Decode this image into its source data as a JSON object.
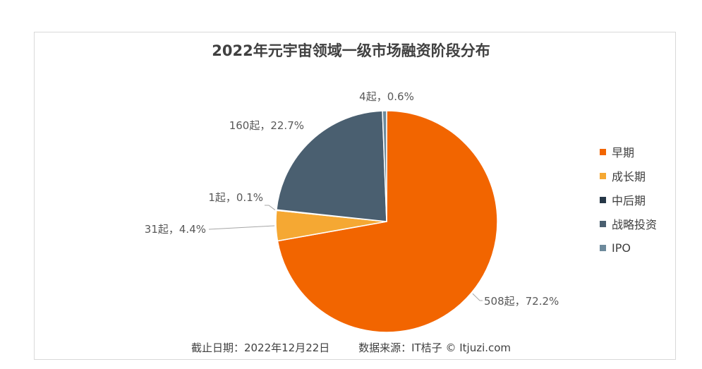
{
  "chart_data": {
    "type": "pie",
    "title": "2022年元宇宙领域一级市场融资阶段分布",
    "categories": [
      "早期",
      "成长期",
      "中后期",
      "战略投资",
      "IPO"
    ],
    "counts": [
      508,
      31,
      1,
      160,
      4
    ],
    "values": [
      72.2,
      4.4,
      0.1,
      22.7,
      0.6
    ],
    "data_labels": [
      "508起，72.2%",
      "31起，4.4%",
      "1起，0.1%",
      "160起，22.7%",
      "4起，0.6%"
    ],
    "colors": [
      "#f26500",
      "#f5a833",
      "#263747",
      "#4a5f70",
      "#6d8a9c"
    ],
    "legend_position": "right"
  },
  "footer": {
    "cutoff": "截止日期：2022年12月22日",
    "source": "数据来源：IT桔子 © Itjuzi.com"
  }
}
